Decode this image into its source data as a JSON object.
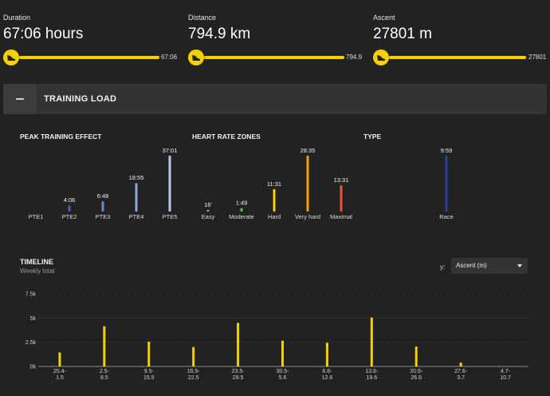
{
  "stats": [
    {
      "label": "Duration",
      "value": "67:06 hours",
      "end_value": "67:06"
    },
    {
      "label": "Distance",
      "value": "794.9 km",
      "end_value": "794.9"
    },
    {
      "label": "Ascent",
      "value": "27801 m",
      "end_value": "27801"
    }
  ],
  "section": {
    "title": "TRAINING LOAD"
  },
  "subcharts": {
    "pte_title": "PEAK TRAINING EFFECT",
    "hr_title": "HEART RATE ZONES",
    "type_title": "TYPE"
  },
  "timeline": {
    "title": "TIMELINE",
    "subtitle": "Weekly total",
    "y_label": "y:",
    "y_select": "Ascent (m)"
  },
  "colors": {
    "accent": "#f5d000",
    "background": "#222222",
    "panel": "#333333"
  },
  "chart_data": [
    {
      "type": "bar",
      "title": "PEAK TRAINING EFFECT",
      "categories": [
        "PTE1",
        "PTE2",
        "PTE3",
        "PTE4",
        "PTE5"
      ],
      "labels": [
        "",
        "4:06",
        "6:48",
        "18:55",
        "37:01"
      ],
      "values_minutes": [
        0,
        4.1,
        6.8,
        18.9,
        37.0
      ],
      "colors": [
        "#3a4fa0",
        "#4a62b8",
        "#6a86cc",
        "#8ea6dc",
        "#b8c8ee"
      ]
    },
    {
      "type": "bar",
      "title": "HEART RATE ZONES",
      "categories": [
        "Easy",
        "Moderate",
        "Hard",
        "Very hard",
        "Maximal"
      ],
      "labels": [
        "16'",
        "1:49",
        "11:31",
        "28:35",
        "13:31"
      ],
      "values_minutes": [
        0.27,
        1.8,
        11.5,
        28.6,
        13.5
      ],
      "colors": [
        "#9ad24a",
        "#5fc24a",
        "#f5d000",
        "#f5a000",
        "#e8553a"
      ]
    },
    {
      "type": "bar",
      "title": "TYPE",
      "categories": [
        "Race"
      ],
      "labels": [
        "9:59"
      ],
      "values_minutes": [
        9.98
      ],
      "colors": [
        "#2a3f9a"
      ]
    },
    {
      "type": "bar",
      "title": "TIMELINE",
      "ylabel": "Ascent (m)",
      "ylim": [
        0,
        7500
      ],
      "yticks": [
        "0k",
        "2.5k",
        "5k",
        "7.5k"
      ],
      "ytick_values": [
        0,
        2500,
        5000,
        7500
      ],
      "categories": [
        [
          "25.4-",
          "1.5"
        ],
        [
          "2.5-",
          "8.5"
        ],
        [
          "9.5-",
          "15.5"
        ],
        [
          "16.5-",
          "22.5"
        ],
        [
          "23.5-",
          "29.5"
        ],
        [
          "30.5-",
          "5.6"
        ],
        [
          "6.6-",
          "12.6"
        ],
        [
          "13.6-",
          "19.6"
        ],
        [
          "20.6-",
          "26.6"
        ],
        [
          "27.6-",
          "3.7"
        ],
        [
          "4.7-",
          "10.7"
        ]
      ],
      "values": [
        1450,
        4150,
        2550,
        2000,
        4500,
        2650,
        2450,
        5050,
        2050,
        400,
        0
      ],
      "color": "#f5d000"
    }
  ]
}
